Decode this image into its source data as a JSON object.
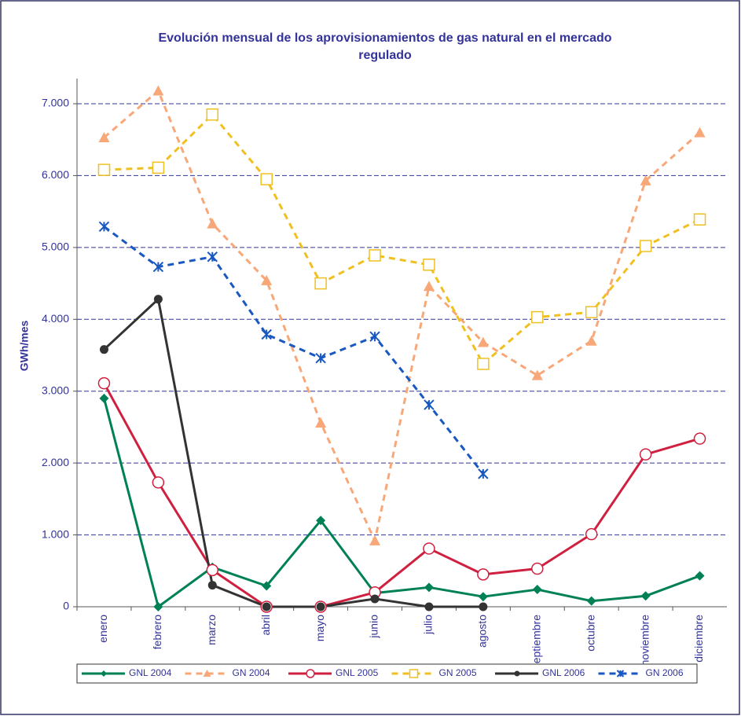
{
  "chart_data": {
    "type": "line",
    "title": "Evolución mensual de los aprovisionamientos de gas natural en el mercado regulado",
    "y_label": "GWh/mes",
    "categories": [
      "enero",
      "febrero",
      "marzo",
      "abril",
      "mayo",
      "junio",
      "julio",
      "agosto",
      "septiembre",
      "octubre",
      "noviembre",
      "diciembre"
    ],
    "ylim": [
      0,
      7350
    ],
    "yticks": [
      0,
      {
        "value": 1000,
        "label": "1.000"
      },
      {
        "value": 2000,
        "label": "2.000"
      },
      {
        "value": 3000,
        "label": "3.000"
      },
      {
        "value": 4000,
        "label": "4.000"
      },
      {
        "value": 5000,
        "label": "5.000"
      },
      {
        "value": 6000,
        "label": "6.000"
      },
      {
        "value": 7000,
        "label": "7.000"
      }
    ],
    "grid": true,
    "legend": "bottom",
    "series": [
      {
        "name": "GNL 2004",
        "color": "#008055",
        "marker": "diamond",
        "dashed": false,
        "values": [
          2900,
          0,
          550,
          290,
          1200,
          190,
          270,
          140,
          240,
          80,
          150,
          430
        ]
      },
      {
        "name": "GN 2004",
        "color": "#f8a878",
        "marker": "triangle",
        "dashed": true,
        "values": [
          6530,
          7180,
          5330,
          4540,
          2560,
          920,
          4460,
          3680,
          3220,
          3700,
          5930,
          6600
        ]
      },
      {
        "name": "GNL 2005",
        "color": "#d02040",
        "marker": "circle-open",
        "dashed": false,
        "values": [
          3110,
          1730,
          510,
          0,
          0,
          200,
          810,
          450,
          530,
          1010,
          2120,
          2340
        ]
      },
      {
        "name": "GN 2005",
        "color": "#f0c020",
        "marker": "square-open",
        "dashed": true,
        "values": [
          6080,
          6110,
          6850,
          5950,
          4500,
          4890,
          4760,
          3380,
          4030,
          4100,
          5020,
          5390
        ]
      },
      {
        "name": "GNL 2006",
        "color": "#333333",
        "marker": "circle",
        "dashed": false,
        "values": [
          3580,
          4280,
          300,
          0,
          0,
          110,
          0,
          0,
          null,
          null,
          null,
          null
        ]
      },
      {
        "name": "GN 2006",
        "color": "#1858c0",
        "marker": "star",
        "dashed": true,
        "values": [
          5290,
          4730,
          4870,
          3790,
          3460,
          3760,
          2810,
          1850,
          null,
          null,
          null,
          null
        ]
      }
    ]
  }
}
